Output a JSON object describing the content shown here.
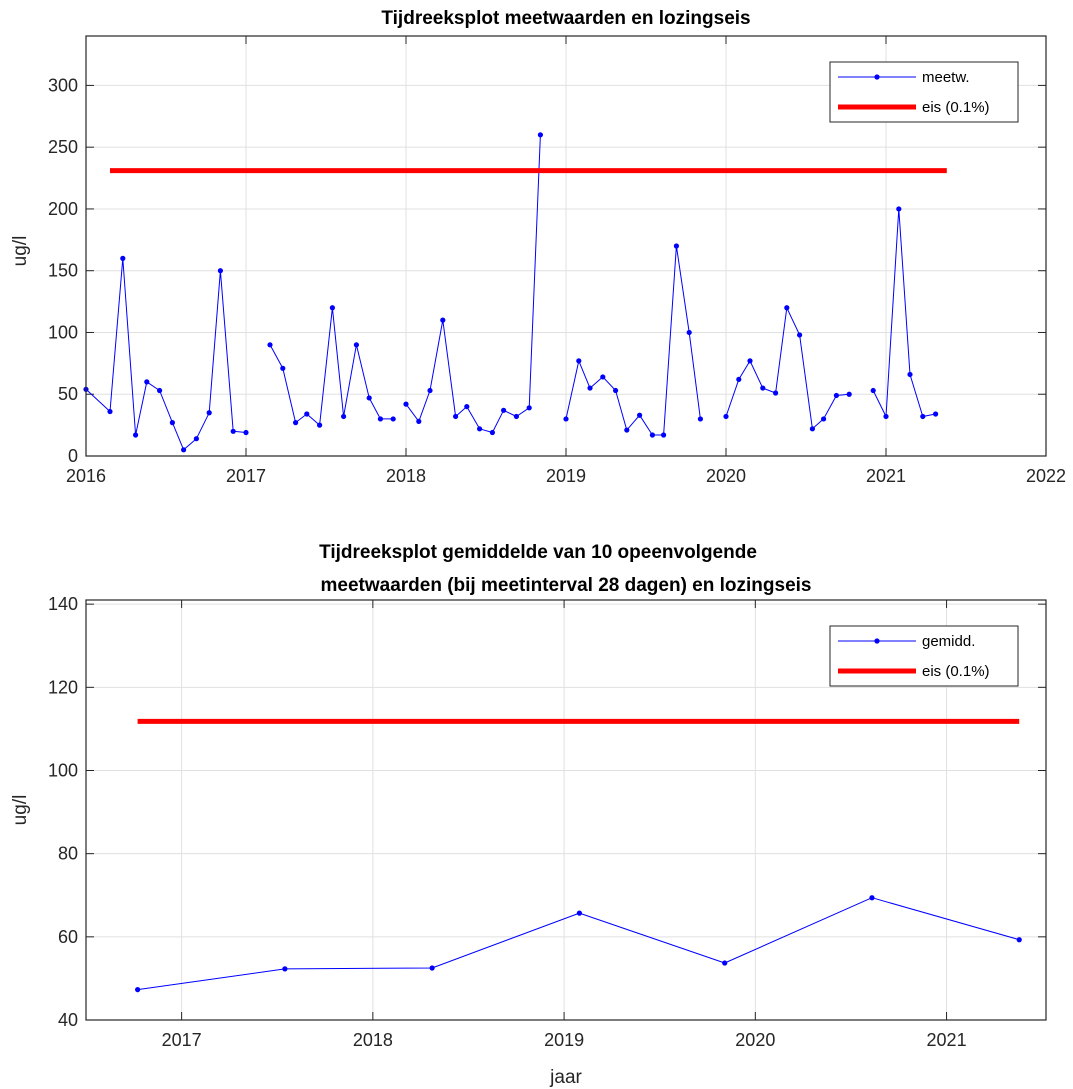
{
  "chart_data": [
    {
      "type": "line",
      "title": "Tijdreeksplot meetwaarden en lozingseis",
      "xlabel": "",
      "ylabel": "ug/l",
      "xlim": [
        2016,
        2022
      ],
      "ylim": [
        0,
        340
      ],
      "xticks": [
        2016,
        2017,
        2018,
        2019,
        2020,
        2021,
        2022
      ],
      "yticks": [
        0,
        50,
        100,
        150,
        200,
        250,
        300
      ],
      "grid": true,
      "legend_position": "top-right",
      "series": [
        {
          "name": "meetw.",
          "color": "#0000ff",
          "marker": "dot",
          "segments": [
            {
              "x": [
                2016.0,
                2016.15,
                2016.23,
                2016.31,
                2016.38,
                2016.46,
                2016.54,
                2016.61,
                2016.69,
                2016.77,
                2016.84,
                2016.92,
                2017.0
              ],
              "y": [
                54,
                36,
                160,
                17,
                60,
                53,
                27,
                5,
                14,
                35,
                150,
                20,
                19
              ]
            },
            {
              "x": [
                2017.15,
                2017.23,
                2017.31,
                2017.38,
                2017.46,
                2017.54,
                2017.61,
                2017.69,
                2017.77,
                2017.84,
                2017.92
              ],
              "y": [
                90,
                71,
                27,
                34,
                25,
                120,
                32,
                90,
                47,
                30,
                30
              ]
            },
            {
              "x": [
                2018.0,
                2018.08,
                2018.15,
                2018.23,
                2018.31,
                2018.38,
                2018.46,
                2018.54,
                2018.61,
                2018.69,
                2018.77,
                2018.84
              ],
              "y": [
                42,
                28,
                53,
                110,
                32,
                40,
                22,
                19,
                37,
                32,
                39,
                260
              ]
            },
            {
              "x": [
                2019.0,
                2019.08,
                2019.15,
                2019.23,
                2019.31,
                2019.38,
                2019.46,
                2019.54,
                2019.61,
                2019.69,
                2019.77,
                2019.84
              ],
              "y": [
                30,
                77,
                55,
                64,
                53,
                21,
                33,
                17,
                17,
                170,
                100,
                30
              ]
            },
            {
              "x": [
                2020.0,
                2020.08,
                2020.15,
                2020.23,
                2020.31,
                2020.38,
                2020.46,
                2020.54,
                2020.61,
                2020.69,
                2020.77
              ],
              "y": [
                32,
                62,
                77,
                55,
                51,
                120,
                98,
                22,
                30,
                49,
                50
              ]
            },
            {
              "x": [
                2020.92,
                2021.0,
                2021.08,
                2021.15,
                2021.23,
                2021.31
              ],
              "y": [
                53,
                32,
                200,
                66,
                32,
                34
              ]
            }
          ]
        },
        {
          "name": "eis (0.1%)",
          "color": "#ff0000",
          "marker": "none",
          "x": [
            2016.15,
            2021.38
          ],
          "y": [
            231,
            231
          ]
        }
      ]
    },
    {
      "type": "line",
      "title": "Tijdreeksplot gemiddelde van 10 opeenvolgende meetwaarden (bij meetinterval 28 dagen) en lozingseis",
      "title_lines": [
        "Tijdreeksplot gemiddelde van 10 opeenvolgende",
        "meetwaarden (bij meetinterval 28 dagen) en lozingseis"
      ],
      "xlabel": "jaar",
      "ylabel": "ug/l",
      "xlim": [
        2016.5,
        2021.52
      ],
      "ylim": [
        40,
        141
      ],
      "xticks": [
        2017,
        2018,
        2019,
        2020,
        2021
      ],
      "yticks": [
        40,
        60,
        80,
        100,
        120,
        140
      ],
      "grid": true,
      "legend_position": "top-right",
      "series": [
        {
          "name": "gemidd.",
          "color": "#0000ff",
          "marker": "dot",
          "x": [
            2016.77,
            2017.54,
            2018.31,
            2019.08,
            2019.84,
            2020.61,
            2021.38
          ],
          "y": [
            47.3,
            52.3,
            52.5,
            65.7,
            53.7,
            69.4,
            59.3
          ]
        },
        {
          "name": "eis (0.1%)",
          "color": "#ff0000",
          "marker": "none",
          "x": [
            2016.77,
            2021.38
          ],
          "y": [
            111.8,
            111.8
          ]
        }
      ]
    }
  ]
}
